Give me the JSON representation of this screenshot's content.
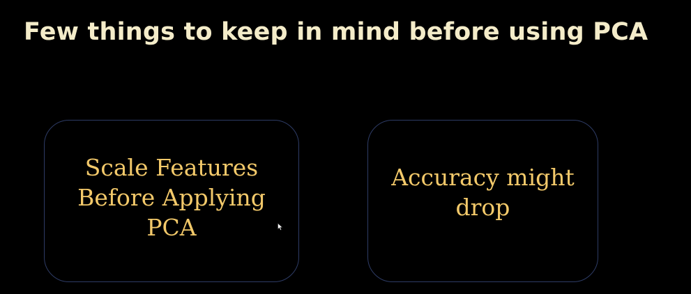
{
  "slide": {
    "title": "Few things to keep in mind before using PCA",
    "cards": [
      {
        "text": "Scale Features\nBefore Applying\nPCA"
      },
      {
        "text": "Accuracy might\ndrop"
      }
    ]
  },
  "colors": {
    "background": "#000000",
    "title": "#f4ecc9",
    "card_text": "#f3c96a",
    "card_border": "#2e3c66"
  },
  "icons": {
    "cursor": "mouse-pointer-icon"
  }
}
